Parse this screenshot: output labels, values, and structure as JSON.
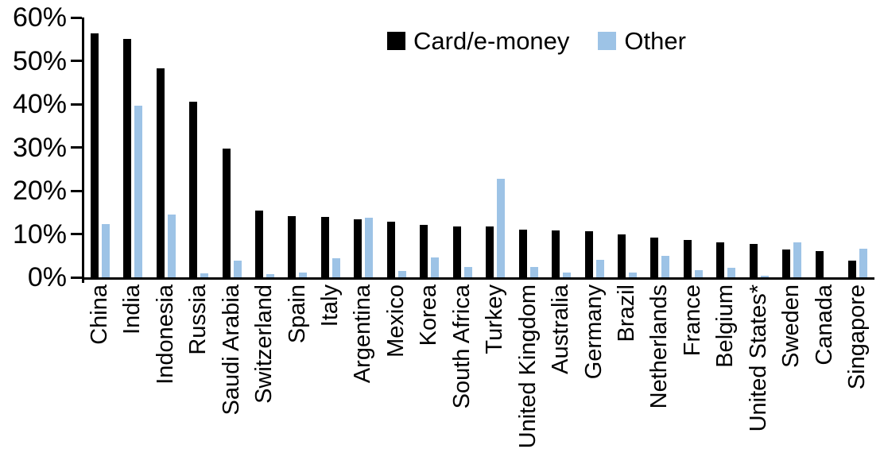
{
  "chart_data": {
    "type": "bar",
    "title": "",
    "xlabel": "",
    "ylabel": "",
    "ylim": [
      0,
      60
    ],
    "yticks": [
      "0%",
      "10%",
      "20%",
      "30%",
      "40%",
      "50%",
      "60%"
    ],
    "grid": false,
    "legend_position": "top-center",
    "categories": [
      "China",
      "India",
      "Indonesia",
      "Russia",
      "Saudi Arabia",
      "Switzerland",
      "Spain",
      "Italy",
      "Argentina",
      "Mexico",
      "Korea",
      "South Africa",
      "Turkey",
      "United Kingdom",
      "Australia",
      "Germany",
      "Brazil",
      "Netherlands",
      "France",
      "Belgium",
      "United States*",
      "Sweden",
      "Canada",
      "Singapore"
    ],
    "series": [
      {
        "name": "Card/e-money",
        "color": "#000000",
        "values": [
          56.3,
          55.1,
          48.2,
          40.6,
          29.8,
          15.5,
          14.2,
          14.0,
          13.4,
          12.9,
          12.2,
          11.8,
          11.7,
          11.1,
          10.8,
          10.6,
          10.0,
          9.2,
          8.6,
          8.1,
          7.8,
          6.5,
          6.0,
          3.9
        ]
      },
      {
        "name": "Other",
        "color": "#9DC3E6",
        "values": [
          12.3,
          39.6,
          14.5,
          1.0,
          3.9,
          0.8,
          1.1,
          4.5,
          13.8,
          1.4,
          4.6,
          2.4,
          22.7,
          2.4,
          1.1,
          4.1,
          1.2,
          4.9,
          1.7,
          2.2,
          0.4,
          8.0,
          0,
          6.6
        ]
      }
    ]
  }
}
